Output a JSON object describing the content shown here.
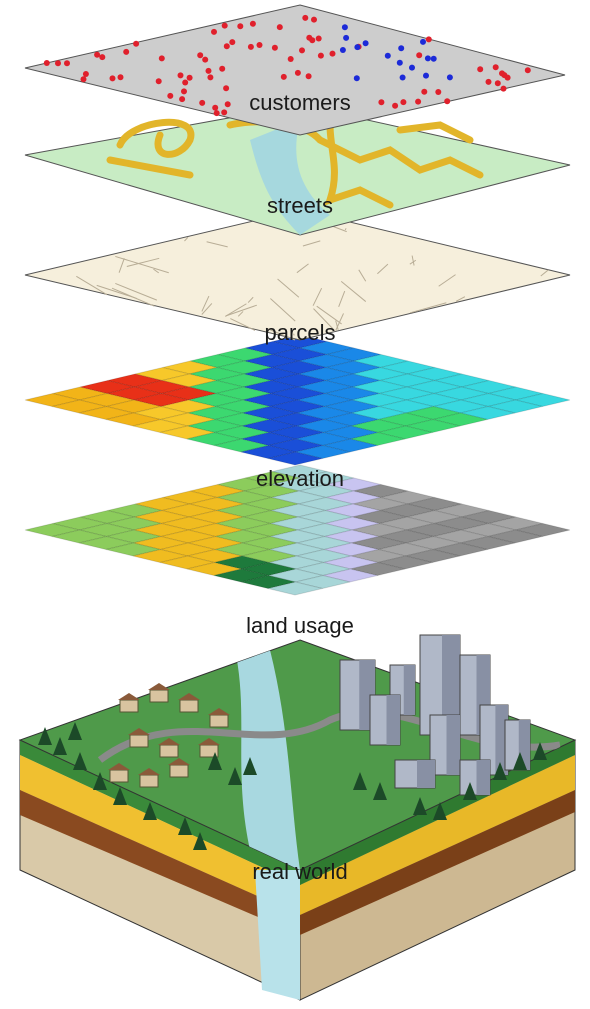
{
  "layers": [
    {
      "label": "customers"
    },
    {
      "label": "streets"
    },
    {
      "label": "parcels"
    },
    {
      "label": "elevation"
    },
    {
      "label": "land usage"
    },
    {
      "label": "real world"
    }
  ]
}
